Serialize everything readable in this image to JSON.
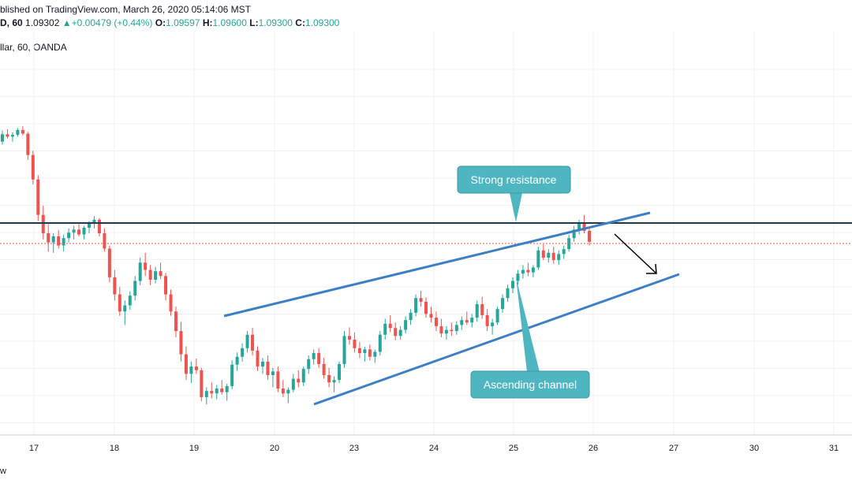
{
  "header": {
    "published": "blished on TradingView.com, March 26, 2020 05:14:06 MST",
    "symbol": "D, 60",
    "last": "1.09302",
    "change_arrow": "▲",
    "change": "+0.00479 (+0.44%)",
    "o_label": "O:",
    "o_value": "1.09597",
    "h_label": "H:",
    "h_value": "1.09600",
    "l_label": "L:",
    "l_value": "1.09300",
    "c_label": "C:",
    "c_value": "1.09300",
    "instrument": "llar, 60, OANDA"
  },
  "footer": {
    "brand": "w"
  },
  "colors": {
    "up": "#26a69a",
    "down": "#ef5350",
    "trendline": "#3d7fc4",
    "resistance": "#1f3a4f",
    "callout": "#4db6c1",
    "grid": "#eef0f3",
    "price_line": "#ef5350"
  },
  "chart_data": {
    "type": "candlestick",
    "timeframe": "60",
    "broker": "OANDA",
    "x_tick_labels": [
      "17",
      "18",
      "19",
      "20",
      "23",
      "24",
      "25",
      "26",
      "27",
      "30",
      "31"
    ],
    "grid": true,
    "annotations": [
      {
        "type": "text-callout",
        "text": "Strong resistance"
      },
      {
        "type": "text-callout",
        "text": "Ascending channel"
      }
    ],
    "candles": [
      [
        1.095,
        1.0968,
        1.0945,
        1.0962
      ],
      [
        1.0962,
        1.097,
        1.0955,
        1.0958
      ],
      [
        1.0958,
        1.0965,
        1.095,
        1.0961
      ],
      [
        1.0961,
        1.0972,
        1.0958,
        1.0969
      ],
      [
        1.0969,
        1.0975,
        1.096,
        1.0963
      ],
      [
        1.0963,
        1.0966,
        1.092,
        1.0928
      ],
      [
        1.0928,
        1.0935,
        1.088,
        1.0888
      ],
      [
        1.0888,
        1.0895,
        1.082,
        1.083
      ],
      [
        1.083,
        1.0845,
        1.079,
        1.08
      ],
      [
        1.08,
        1.0815,
        1.077,
        1.0785
      ],
      [
        1.0785,
        1.08,
        1.0768,
        1.0795
      ],
      [
        1.0795,
        1.0805,
        1.0775,
        1.078
      ],
      [
        1.078,
        1.0798,
        1.077,
        1.0792
      ],
      [
        1.0792,
        1.0808,
        1.0785,
        1.0801
      ],
      [
        1.0801,
        1.0812,
        1.079,
        1.0806
      ],
      [
        1.0806,
        1.0815,
        1.0795,
        1.0798
      ],
      [
        1.0798,
        1.0812,
        1.079,
        1.0809
      ],
      [
        1.0809,
        1.082,
        1.08,
        1.0816
      ],
      [
        1.0816,
        1.0828,
        1.0808,
        1.0822
      ],
      [
        1.0822,
        1.0825,
        1.0795,
        1.08
      ],
      [
        1.08,
        1.0808,
        1.077,
        1.0775
      ],
      [
        1.0775,
        1.078,
        1.072,
        1.0728
      ],
      [
        1.0728,
        1.074,
        1.069,
        1.07
      ],
      [
        1.07,
        1.0712,
        1.0665,
        1.0672
      ],
      [
        1.0672,
        1.069,
        1.065,
        1.0682
      ],
      [
        1.0682,
        1.0705,
        1.0675,
        1.0698
      ],
      [
        1.0698,
        1.073,
        1.069,
        1.0722
      ],
      [
        1.0722,
        1.076,
        1.0715,
        1.0752
      ],
      [
        1.0752,
        1.0768,
        1.073,
        1.074
      ],
      [
        1.074,
        1.0748,
        1.0715,
        1.0724
      ],
      [
        1.0724,
        1.0745,
        1.0718,
        1.0738
      ],
      [
        1.0738,
        1.0752,
        1.0725,
        1.073
      ],
      [
        1.073,
        1.0735,
        1.069,
        1.07
      ],
      [
        1.07,
        1.0708,
        1.0665,
        1.0672
      ],
      [
        1.0672,
        1.068,
        1.063,
        1.064
      ],
      [
        1.064,
        1.0655,
        1.059,
        1.0602
      ],
      [
        1.0602,
        1.0615,
        1.056,
        1.057
      ],
      [
        1.057,
        1.059,
        1.0555,
        1.0582
      ],
      [
        1.0582,
        1.0595,
        1.057,
        1.0576
      ],
      [
        1.0576,
        1.058,
        1.0525,
        1.0532
      ],
      [
        1.0532,
        1.0548,
        1.052,
        1.0542
      ],
      [
        1.0542,
        1.0556,
        1.053,
        1.0538
      ],
      [
        1.0538,
        1.0552,
        1.0528,
        1.0546
      ],
      [
        1.0546,
        1.056,
        1.0536,
        1.054
      ],
      [
        1.054,
        1.0554,
        1.0526,
        1.055
      ],
      [
        1.055,
        1.0592,
        1.0545,
        1.0585
      ],
      [
        1.0585,
        1.0605,
        1.0575,
        1.0598
      ],
      [
        1.0598,
        1.062,
        1.059,
        1.0612
      ],
      [
        1.0612,
        1.064,
        1.0605,
        1.0634
      ],
      [
        1.0634,
        1.0645,
        1.06,
        1.0608
      ],
      [
        1.0608,
        1.0615,
        1.0575,
        1.0582
      ],
      [
        1.0582,
        1.0596,
        1.057,
        1.059
      ],
      [
        1.059,
        1.06,
        1.056,
        1.0568
      ],
      [
        1.0568,
        1.058,
        1.0548,
        1.0574
      ],
      [
        1.0574,
        1.0582,
        1.054,
        1.0546
      ],
      [
        1.0546,
        1.056,
        1.0532,
        1.0538
      ],
      [
        1.0538,
        1.0548,
        1.0522,
        1.0544
      ],
      [
        1.0544,
        1.057,
        1.054,
        1.0562
      ],
      [
        1.0562,
        1.0576,
        1.0548,
        1.0556
      ],
      [
        1.0556,
        1.0582,
        1.055,
        1.0578
      ],
      [
        1.0578,
        1.06,
        1.057,
        1.0594
      ],
      [
        1.0594,
        1.061,
        1.0585,
        1.0604
      ],
      [
        1.0604,
        1.0612,
        1.058,
        1.0586
      ],
      [
        1.0586,
        1.0596,
        1.0562,
        1.0568
      ],
      [
        1.0568,
        1.058,
        1.0548,
        1.0556
      ],
      [
        1.0556,
        1.0566,
        1.054,
        1.056
      ],
      [
        1.056,
        1.059,
        1.0555,
        1.0586
      ],
      [
        1.0586,
        1.064,
        1.058,
        1.0632
      ],
      [
        1.0632,
        1.0646,
        1.0618,
        1.0626
      ],
      [
        1.0626,
        1.0638,
        1.0605,
        1.0612
      ],
      [
        1.0612,
        1.0622,
        1.0596,
        1.0604
      ],
      [
        1.0604,
        1.0614,
        1.059,
        1.061
      ],
      [
        1.061,
        1.0618,
        1.0592,
        1.0598
      ],
      [
        1.0598,
        1.061,
        1.0588,
        1.0606
      ],
      [
        1.0606,
        1.064,
        1.06,
        1.0634
      ],
      [
        1.0634,
        1.066,
        1.0626,
        1.0652
      ],
      [
        1.0652,
        1.0666,
        1.0638,
        1.0645
      ],
      [
        1.0645,
        1.0654,
        1.0625,
        1.0632
      ],
      [
        1.0632,
        1.0648,
        1.0626,
        1.0642
      ],
      [
        1.0642,
        1.0664,
        1.0636,
        1.0658
      ],
      [
        1.0658,
        1.0676,
        1.065,
        1.067
      ],
      [
        1.067,
        1.07,
        1.0664,
        1.0694
      ],
      [
        1.0694,
        1.0706,
        1.068,
        1.0688
      ],
      [
        1.0688,
        1.0695,
        1.0662,
        1.0668
      ],
      [
        1.0668,
        1.068,
        1.0654,
        1.0662
      ],
      [
        1.0662,
        1.0672,
        1.064,
        1.0648
      ],
      [
        1.0648,
        1.066,
        1.063,
        1.0636
      ],
      [
        1.0636,
        1.0648,
        1.0626,
        1.0642
      ],
      [
        1.0642,
        1.0654,
        1.0632,
        1.064
      ],
      [
        1.064,
        1.0656,
        1.0634,
        1.065
      ],
      [
        1.065,
        1.0664,
        1.0642,
        1.0658
      ],
      [
        1.0658,
        1.0672,
        1.065,
        1.0654
      ],
      [
        1.0654,
        1.0668,
        1.0646,
        1.0662
      ],
      [
        1.0662,
        1.069,
        1.0655,
        1.0684
      ],
      [
        1.0684,
        1.0696,
        1.066,
        1.0666
      ],
      [
        1.0666,
        1.0676,
        1.064,
        1.0648
      ],
      [
        1.0648,
        1.066,
        1.0634,
        1.0654
      ],
      [
        1.0654,
        1.068,
        1.065,
        1.0676
      ],
      [
        1.0676,
        1.07,
        1.067,
        1.0694
      ],
      [
        1.0694,
        1.0716,
        1.0688,
        1.071
      ],
      [
        1.071,
        1.0728,
        1.0702,
        1.0722
      ],
      [
        1.0722,
        1.074,
        1.0716,
        1.0734
      ],
      [
        1.0734,
        1.0748,
        1.0726,
        1.074
      ],
      [
        1.074,
        1.0752,
        1.073,
        1.0736
      ],
      [
        1.0736,
        1.0748,
        1.0728,
        1.0744
      ],
      [
        1.0744,
        1.0778,
        1.074,
        1.0772
      ],
      [
        1.0772,
        1.0782,
        1.0756,
        1.076
      ],
      [
        1.076,
        1.0774,
        1.0752,
        1.0768
      ],
      [
        1.0768,
        1.0778,
        1.075,
        1.0756
      ],
      [
        1.0756,
        1.0772,
        1.0748,
        1.0766
      ],
      [
        1.0766,
        1.078,
        1.0758,
        1.0774
      ],
      [
        1.0774,
        1.0798,
        1.077,
        1.0792
      ],
      [
        1.0792,
        1.0812,
        1.0786,
        1.0806
      ],
      [
        1.0806,
        1.0822,
        1.0798,
        1.0816
      ],
      [
        1.0816,
        1.083,
        1.08,
        1.0804
      ],
      [
        1.0804,
        1.0808,
        1.078,
        1.0786
      ]
    ]
  }
}
